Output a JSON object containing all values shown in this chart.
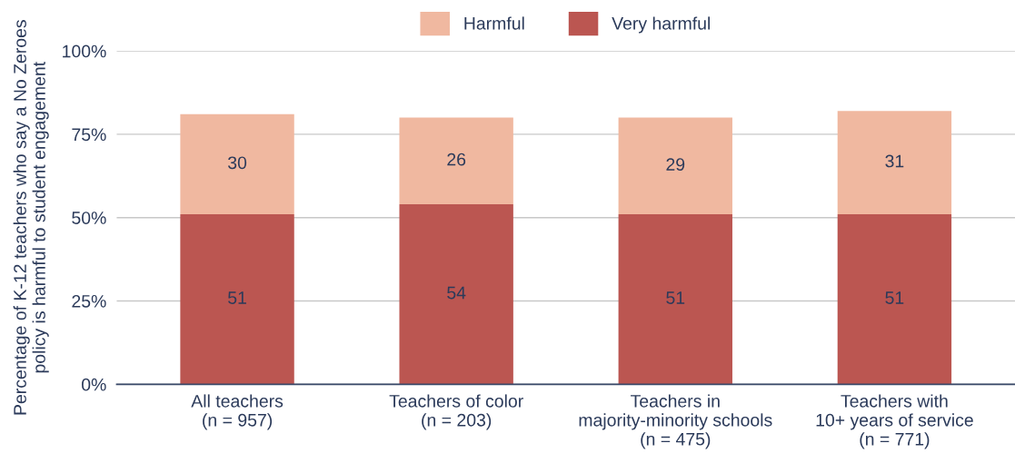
{
  "chart_data": {
    "type": "bar",
    "stacked": true,
    "ylabel": "Percentage of K-12 teachers who say a No Zeroes\npolicy is harmful to student engagement",
    "categories": [
      "All teachers\n(n = 957)",
      "Teachers of color\n(n = 203)",
      "Teachers in\nmajority-minority schools\n(n = 475)",
      "Teachers with\n10+ years of service\n(n = 771)"
    ],
    "series": [
      {
        "name": "Very harmful",
        "color": "#bb5651",
        "values": [
          51,
          54,
          51,
          51
        ]
      },
      {
        "name": "Harmful",
        "color": "#f0b8a0",
        "values": [
          30,
          26,
          29,
          31
        ]
      }
    ],
    "ylim": [
      0,
      100
    ],
    "yticks": [
      {
        "value": 0,
        "label": "0%"
      },
      {
        "value": 25,
        "label": "25%"
      },
      {
        "value": 50,
        "label": "50%"
      },
      {
        "value": 75,
        "label": "75%"
      },
      {
        "value": 100,
        "label": "100%"
      }
    ],
    "grid": "y",
    "legend": "top",
    "data_labels": true
  }
}
